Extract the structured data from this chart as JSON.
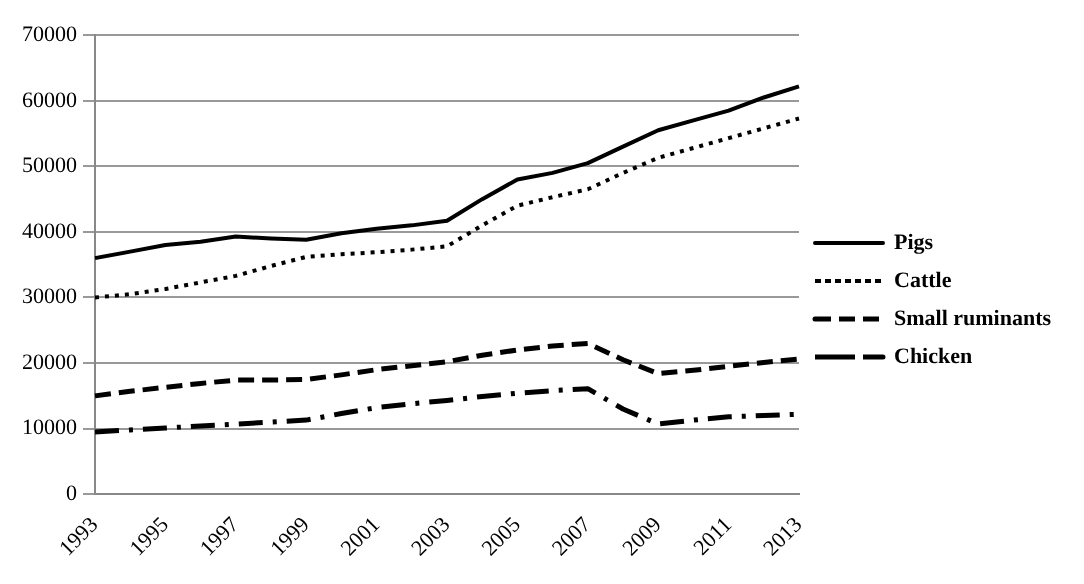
{
  "chart_data": {
    "type": "line",
    "categories": [
      "1993",
      null,
      "1995",
      null,
      "1997",
      null,
      "1999",
      null,
      "2001",
      null,
      "2003",
      null,
      "2005",
      null,
      "2007",
      null,
      "2009",
      null,
      "2011",
      null,
      "2013"
    ],
    "series": [
      {
        "name": "Pigs",
        "color": "#000000",
        "line_style": "solid",
        "values": [
          36000,
          37000,
          38000,
          38500,
          39300,
          39000,
          38800,
          39800,
          40500,
          41000,
          41700,
          45000,
          48000,
          49000,
          50500,
          53000,
          55500,
          57000,
          58500,
          60500,
          62200
        ]
      },
      {
        "name": "Cattle",
        "color": "#000000",
        "line_style": "dotted",
        "values": [
          30000,
          30500,
          31300,
          32300,
          33300,
          34800,
          36200,
          36600,
          36900,
          37300,
          37800,
          41000,
          44000,
          45300,
          46500,
          49000,
          51300,
          52800,
          54300,
          55800,
          57300
        ]
      },
      {
        "name": "Small ruminants",
        "color": "#000000",
        "line_style": "dashed",
        "values": [
          15000,
          15700,
          16300,
          16900,
          17400,
          17400,
          17500,
          18200,
          19000,
          19600,
          20200,
          21200,
          22000,
          22600,
          23000,
          20500,
          18400,
          18900,
          19500,
          20100,
          20600
        ]
      },
      {
        "name": "Chicken",
        "color": "#000000",
        "line_style": "dashdot",
        "values": [
          9500,
          9800,
          10100,
          10400,
          10700,
          11000,
          11300,
          12300,
          13200,
          13800,
          14300,
          14900,
          15400,
          15800,
          16100,
          13000,
          10700,
          11300,
          11800,
          12000,
          12200
        ]
      }
    ],
    "ylim": [
      0,
      70000
    ],
    "yticks": [
      0,
      10000,
      20000,
      30000,
      40000,
      50000,
      60000,
      70000
    ],
    "grid": "y",
    "legend": "right",
    "marker": "none"
  }
}
